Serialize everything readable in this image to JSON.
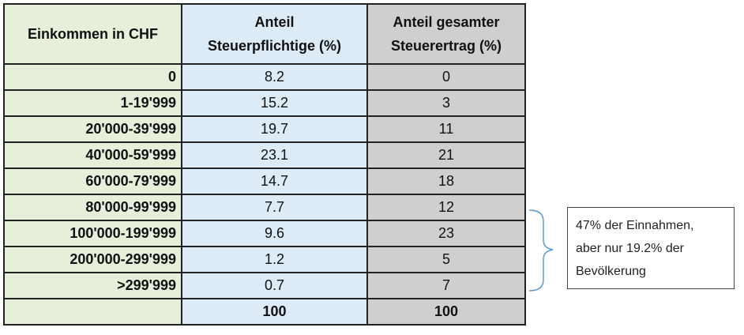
{
  "table": {
    "header": [
      [
        "Einkommen in CHF"
      ],
      [
        "Anteil",
        "Steuerpflichtige (%)"
      ],
      [
        "Anteil gesamter",
        "Steuerertrag (%)"
      ]
    ],
    "rows": [
      [
        "0",
        "8.2",
        "0"
      ],
      [
        "1-19'999",
        "15.2",
        "3"
      ],
      [
        "20'000-39'999",
        "19.7",
        "11"
      ],
      [
        "40'000-59'999",
        "23.1",
        "21"
      ],
      [
        "60'000-79'999",
        "14.7",
        "18"
      ],
      [
        "80'000-99'999",
        "7.7",
        "12"
      ],
      [
        "100'000-199'999",
        "9.6",
        "23"
      ],
      [
        "200'000-299'999",
        "1.2",
        "5"
      ],
      [
        ">299'999",
        "0.7",
        "7"
      ]
    ],
    "total": [
      "100",
      "100"
    ]
  },
  "annotation": {
    "lines": [
      "47% der Einnahmen,",
      "aber nur 19.2% der",
      "Bevölkerung"
    ]
  }
}
